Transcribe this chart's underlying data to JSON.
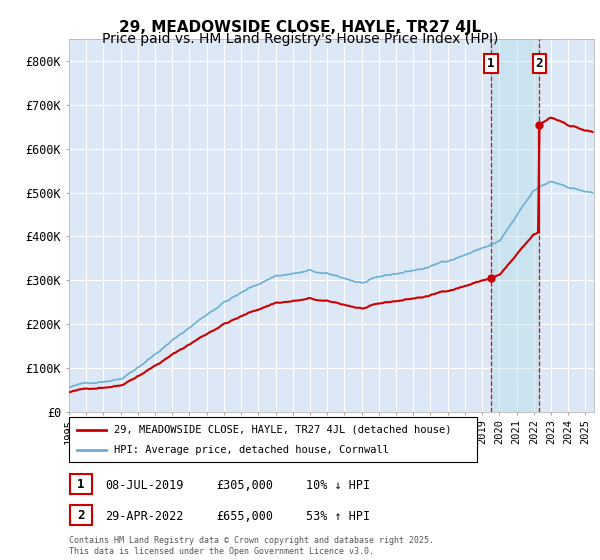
{
  "title": "29, MEADOWSIDE CLOSE, HAYLE, TR27 4JL",
  "subtitle": "Price paid vs. HM Land Registry's House Price Index (HPI)",
  "legend_line1": "29, MEADOWSIDE CLOSE, HAYLE, TR27 4JL (detached house)",
  "legend_line2": "HPI: Average price, detached house, Cornwall",
  "transaction1_date": "08-JUL-2019",
  "transaction1_price": "£305,000",
  "transaction1_hpi": "10% ↓ HPI",
  "transaction2_date": "29-APR-2022",
  "transaction2_price": "£655,000",
  "transaction2_hpi": "53% ↑ HPI",
  "footnote": "Contains HM Land Registry data © Crown copyright and database right 2025.\nThis data is licensed under the Open Government Licence v3.0.",
  "hpi_color": "#6baed6",
  "price_color": "#cc0000",
  "marker1_x_year": 2019.52,
  "marker2_x_year": 2022.33,
  "marker1_price": 305000,
  "marker2_price": 655000,
  "ylim_max": 850000,
  "ylim_min": 0,
  "xlim_min": 1995.0,
  "xlim_max": 2025.5,
  "plot_bg_color": "#dce8f5",
  "background_color": "#ffffff",
  "grid_color": "#ffffff",
  "title_fontsize": 11,
  "subtitle_fontsize": 10
}
